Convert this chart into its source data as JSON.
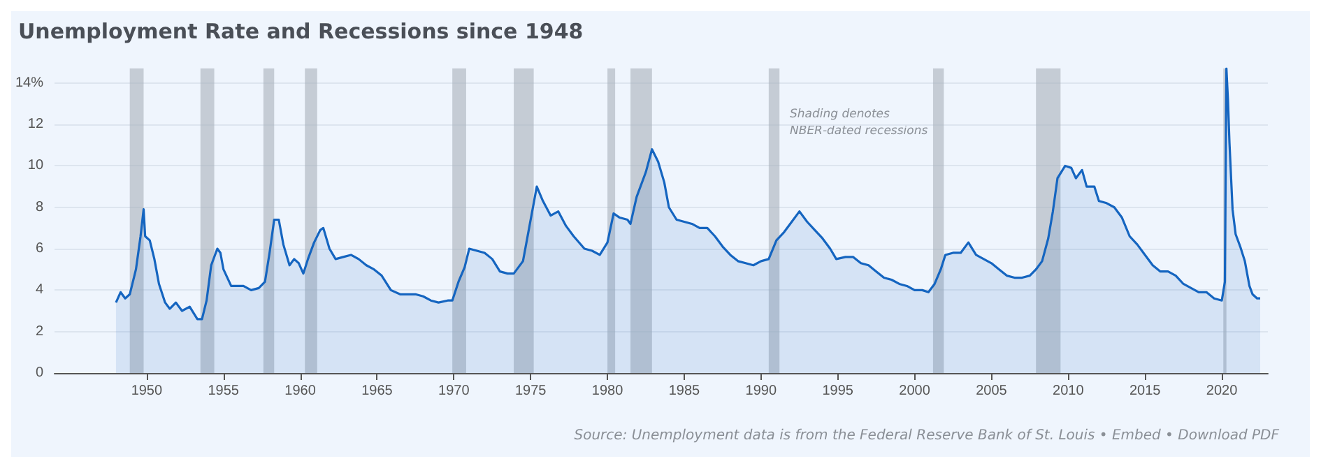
{
  "chart_data": {
    "type": "area",
    "title": "Unemployment Rate and Recessions since 1948",
    "x": [
      1948.0,
      1948.3,
      1948.6,
      1948.9,
      1949.3,
      1949.6,
      1949.8,
      1949.9,
      1950.2,
      1950.5,
      1950.8,
      1951.2,
      1951.5,
      1951.9,
      1952.3,
      1952.8,
      1953.3,
      1953.6,
      1953.9,
      1954.2,
      1954.6,
      1954.8,
      1955.0,
      1955.5,
      1955.9,
      1956.3,
      1956.8,
      1957.3,
      1957.7,
      1958.0,
      1958.3,
      1958.6,
      1958.9,
      1959.3,
      1959.6,
      1959.9,
      1960.2,
      1960.5,
      1960.9,
      1961.3,
      1961.5,
      1961.9,
      1962.3,
      1962.8,
      1963.3,
      1963.8,
      1964.3,
      1964.8,
      1965.3,
      1965.9,
      1966.5,
      1967.0,
      1967.5,
      1968.0,
      1968.5,
      1969.0,
      1969.6,
      1969.9,
      1970.3,
      1970.7,
      1971.0,
      1971.5,
      1972.0,
      1972.5,
      1973.0,
      1973.5,
      1973.9,
      1974.5,
      1974.9,
      1975.4,
      1975.8,
      1976.3,
      1976.8,
      1977.3,
      1977.8,
      1978.5,
      1979.0,
      1979.5,
      1980.0,
      1980.4,
      1980.8,
      1981.3,
      1981.5,
      1981.9,
      1982.5,
      1982.9,
      1983.3,
      1983.7,
      1984.0,
      1984.5,
      1985.0,
      1985.5,
      1986.0,
      1986.5,
      1987.0,
      1987.5,
      1988.0,
      1988.5,
      1989.0,
      1989.5,
      1990.0,
      1990.5,
      1991.0,
      1991.5,
      1992.0,
      1992.5,
      1993.0,
      1993.5,
      1994.0,
      1994.5,
      1994.9,
      1995.5,
      1996.0,
      1996.5,
      1997.0,
      1997.5,
      1998.0,
      1998.5,
      1999.0,
      1999.5,
      2000.0,
      2000.5,
      2000.9,
      2001.3,
      2001.7,
      2002.0,
      2002.5,
      2003.0,
      2003.5,
      2004.0,
      2004.5,
      2005.0,
      2005.5,
      2006.0,
      2006.5,
      2007.0,
      2007.5,
      2007.9,
      2008.3,
      2008.7,
      2009.0,
      2009.3,
      2009.8,
      2010.2,
      2010.5,
      2010.9,
      2011.2,
      2011.7,
      2012.0,
      2012.5,
      2013.0,
      2013.5,
      2014.0,
      2014.5,
      2015.0,
      2015.5,
      2016.0,
      2016.5,
      2017.0,
      2017.5,
      2018.0,
      2018.5,
      2019.0,
      2019.5,
      2020.0,
      2020.2,
      2020.3,
      2020.4,
      2020.5,
      2020.7,
      2020.9,
      2021.2,
      2021.5,
      2021.8,
      2022.0,
      2022.3,
      2022.5
    ],
    "series": [
      {
        "color": "#1565c0",
        "values": [
          3.4,
          3.9,
          3.6,
          3.8,
          5.0,
          6.6,
          7.9,
          6.6,
          6.4,
          5.5,
          4.3,
          3.4,
          3.1,
          3.4,
          3.0,
          3.2,
          2.6,
          2.6,
          3.5,
          5.2,
          6.0,
          5.8,
          5.0,
          4.2,
          4.2,
          4.2,
          4.0,
          4.1,
          4.4,
          5.8,
          7.4,
          7.4,
          6.2,
          5.2,
          5.5,
          5.3,
          4.8,
          5.5,
          6.3,
          6.9,
          7.0,
          6.0,
          5.5,
          5.6,
          5.7,
          5.5,
          5.2,
          5.0,
          4.7,
          4.0,
          3.8,
          3.8,
          3.8,
          3.7,
          3.5,
          3.4,
          3.5,
          3.5,
          4.4,
          5.1,
          6.0,
          5.9,
          5.8,
          5.5,
          4.9,
          4.8,
          4.8,
          5.4,
          7.0,
          9.0,
          8.3,
          7.6,
          7.8,
          7.1,
          6.6,
          6.0,
          5.9,
          5.7,
          6.3,
          7.7,
          7.5,
          7.4,
          7.2,
          8.5,
          9.7,
          10.8,
          10.2,
          9.2,
          8.0,
          7.4,
          7.3,
          7.2,
          7.0,
          7.0,
          6.6,
          6.1,
          5.7,
          5.4,
          5.3,
          5.2,
          5.4,
          5.5,
          6.4,
          6.8,
          7.3,
          7.8,
          7.3,
          6.9,
          6.5,
          6.0,
          5.5,
          5.6,
          5.6,
          5.3,
          5.2,
          4.9,
          4.6,
          4.5,
          4.3,
          4.2,
          4.0,
          4.0,
          3.9,
          4.3,
          5.0,
          5.7,
          5.8,
          5.8,
          6.3,
          5.7,
          5.5,
          5.3,
          5.0,
          4.7,
          4.6,
          4.6,
          4.7,
          5.0,
          5.4,
          6.5,
          7.8,
          9.4,
          10.0,
          9.9,
          9.4,
          9.8,
          9.0,
          9.0,
          8.3,
          8.2,
          8.0,
          7.5,
          6.6,
          6.2,
          5.7,
          5.2,
          4.9,
          4.9,
          4.7,
          4.3,
          4.1,
          3.9,
          3.9,
          3.6,
          3.5,
          4.4,
          14.7,
          13.2,
          11.1,
          7.9,
          6.7,
          6.1,
          5.4,
          4.2,
          3.8,
          3.6,
          3.6
        ]
      }
    ],
    "xlim": [
      1944,
      2023
    ],
    "ylim": [
      0,
      14.7
    ],
    "xticks": [
      1950,
      1955,
      1960,
      1965,
      1970,
      1975,
      1980,
      1985,
      1990,
      1995,
      2000,
      2005,
      2010,
      2015,
      2020
    ],
    "yticks": [
      0,
      2,
      4,
      6,
      8,
      10,
      12,
      {
        "value": 14,
        "label": "14%"
      }
    ],
    "grid": "y",
    "bands": [
      {
        "axis": "x",
        "from": 1948.9,
        "to": 1949.8,
        "color": "#a9b0ba"
      },
      {
        "axis": "x",
        "from": 1953.5,
        "to": 1954.4,
        "color": "#a9b0ba"
      },
      {
        "axis": "x",
        "from": 1957.6,
        "to": 1958.3,
        "color": "#a9b0ba"
      },
      {
        "axis": "x",
        "from": 1960.3,
        "to": 1961.1,
        "color": "#a9b0ba"
      },
      {
        "axis": "x",
        "from": 1969.9,
        "to": 1970.8,
        "color": "#a9b0ba"
      },
      {
        "axis": "x",
        "from": 1973.9,
        "to": 1975.2,
        "color": "#a9b0ba"
      },
      {
        "axis": "x",
        "from": 1980.0,
        "to": 1980.5,
        "color": "#a9b0ba"
      },
      {
        "axis": "x",
        "from": 1981.5,
        "to": 1982.9,
        "color": "#a9b0ba"
      },
      {
        "axis": "x",
        "from": 1990.5,
        "to": 1991.2,
        "color": "#a9b0ba"
      },
      {
        "axis": "x",
        "from": 2001.2,
        "to": 2001.9,
        "color": "#a9b0ba"
      },
      {
        "axis": "x",
        "from": 2007.9,
        "to": 2009.5,
        "color": "#a9b0ba"
      },
      {
        "axis": "x",
        "from": 2020.1,
        "to": 2020.3,
        "color": "#a9b0ba"
      }
    ],
    "annotations": [
      "Shading denotes NBER-dated recessions",
      "Source: Unemployment data is from the Federal Reserve Bank of St. Louis • Embed • Download PDF"
    ]
  }
}
